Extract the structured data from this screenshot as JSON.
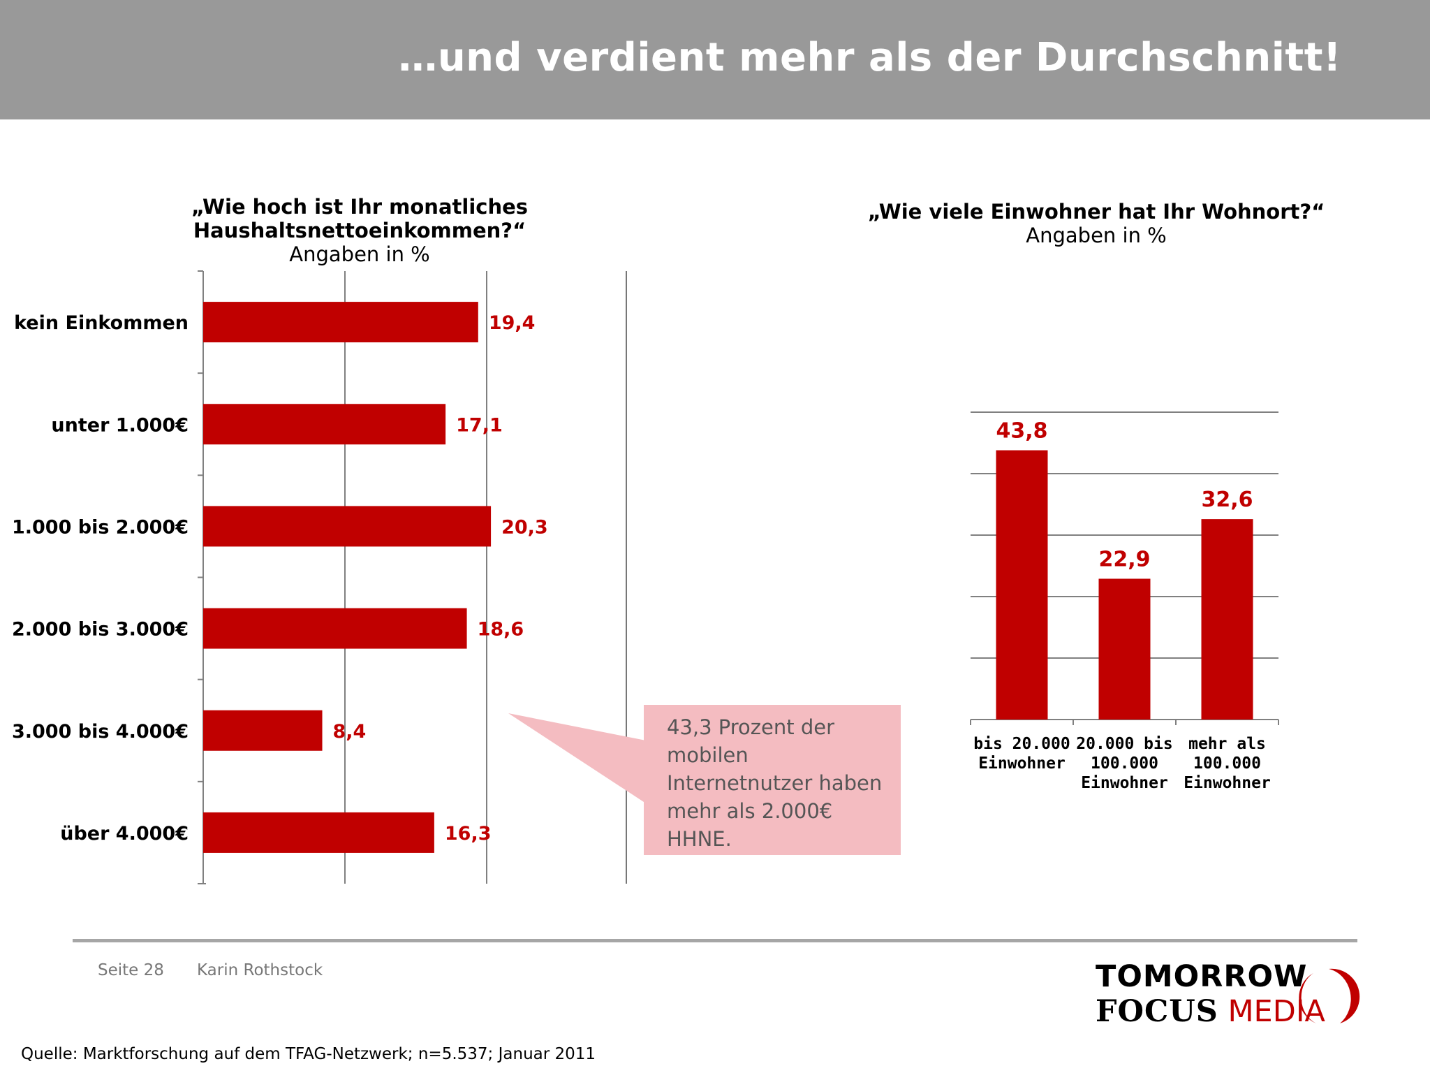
{
  "header": {
    "title": "…und verdient mehr als der Durchschnitt!"
  },
  "colors": {
    "bar": "#c00000",
    "header_bg": "#999999",
    "callout_bg": "#f4bcc1"
  },
  "chart_data": [
    {
      "type": "bar",
      "orientation": "horizontal",
      "title": "„Wie hoch ist Ihr monatliches Haushaltsnettoeinkommen?“",
      "subtitle": "Angaben in %",
      "categories": [
        "kein Einkommen",
        "unter 1.000€",
        "1.000 bis 2.000€",
        "2.000 bis 3.000€",
        "3.000 bis 4.000€",
        "über 4.000€"
      ],
      "values": [
        19.4,
        17.1,
        20.3,
        18.6,
        8.4,
        16.3
      ],
      "value_labels": [
        "19,4",
        "17,1",
        "20,3",
        "18,6",
        "8,4",
        "16,3"
      ],
      "xlim": [
        0,
        30
      ],
      "grid": true
    },
    {
      "type": "bar",
      "orientation": "vertical",
      "title": "„Wie viele Einwohner hat Ihr Wohnort?“",
      "subtitle": "Angaben in %",
      "categories": [
        [
          "bis 20.000",
          "Einwohner"
        ],
        [
          "20.000 bis",
          "100.000",
          "Einwohner"
        ],
        [
          "mehr als",
          "100.000",
          "Einwohner"
        ]
      ],
      "values": [
        43.8,
        22.9,
        32.6
      ],
      "value_labels": [
        "43,8",
        "22,9",
        "32,6"
      ],
      "ylim": [
        0,
        50
      ],
      "grid": true
    }
  ],
  "callout": {
    "text": "43,3 Prozent der mobilen Internetnutzer haben mehr als 2.000€ HHNE."
  },
  "footer": {
    "page": "Seite 28",
    "author": "Karin Rothstock",
    "source": "Quelle: Marktforschung auf dem TFAG-Netzwerk; n=5.537; Januar 2011"
  },
  "logo": {
    "line1": "TOMORROW",
    "line2a": "FOCUS",
    "line2b": "MEDIA"
  }
}
